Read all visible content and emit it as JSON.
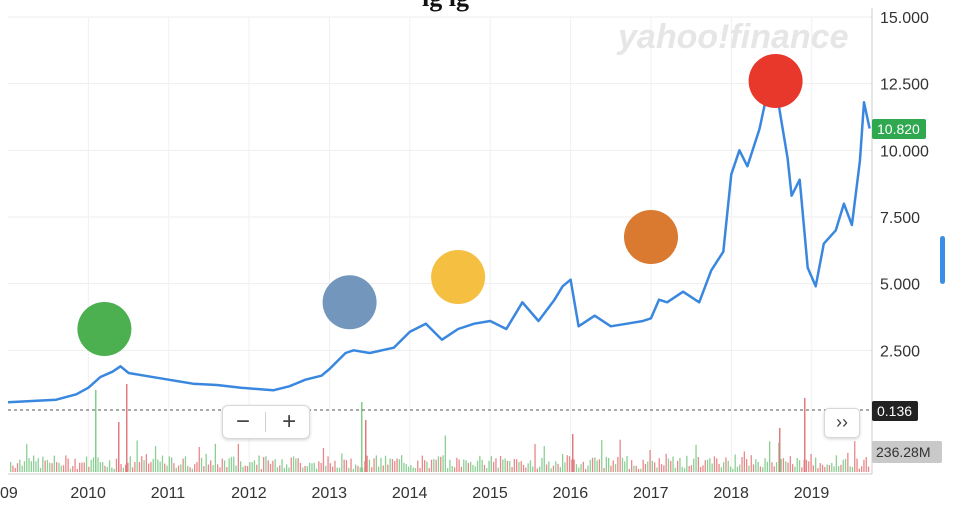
{
  "chart_data": {
    "type": "line",
    "title": "",
    "watermark": "yahoo!finance",
    "xlabel": "",
    "ylabel": "",
    "x_tick_labels": [
      "09",
      "2010",
      "2011",
      "2012",
      "2013",
      "2014",
      "2015",
      "2016",
      "2017",
      "2018",
      "2019"
    ],
    "x_range": [
      2009.0,
      2019.75
    ],
    "y_tick_labels": [
      "15.000",
      "12.500",
      "10.000",
      "7.500",
      "5.000",
      "2.500"
    ],
    "ylim": [
      0,
      15.0
    ],
    "grid": true,
    "series": [
      {
        "name": "",
        "color": "#3a87e0",
        "x": [
          2009.0,
          2009.3,
          2009.6,
          2009.85,
          2010.0,
          2010.15,
          2010.3,
          2010.4,
          2010.5,
          2010.7,
          2011.0,
          2011.3,
          2011.6,
          2011.9,
          2012.1,
          2012.3,
          2012.5,
          2012.7,
          2012.9,
          2013.0,
          2013.1,
          2013.2,
          2013.3,
          2013.5,
          2013.8,
          2014.0,
          2014.2,
          2014.4,
          2014.6,
          2014.8,
          2015.0,
          2015.2,
          2015.4,
          2015.6,
          2015.8,
          2015.9,
          2016.0,
          2016.1,
          2016.3,
          2016.5,
          2016.7,
          2016.9,
          2017.0,
          2017.1,
          2017.2,
          2017.4,
          2017.6,
          2017.75,
          2017.9,
          2018.0,
          2018.1,
          2018.2,
          2018.35,
          2018.45,
          2018.55,
          2018.6,
          2018.7,
          2018.75,
          2018.85,
          2018.95,
          2019.05,
          2019.15,
          2019.3,
          2019.4,
          2019.5,
          2019.6,
          2019.65,
          2019.72
        ],
        "values": [
          0.55,
          0.6,
          0.65,
          0.85,
          1.1,
          1.5,
          1.7,
          1.9,
          1.65,
          1.55,
          1.4,
          1.25,
          1.2,
          1.1,
          1.05,
          1.0,
          1.15,
          1.4,
          1.55,
          1.8,
          2.1,
          2.4,
          2.5,
          2.4,
          2.6,
          3.2,
          3.5,
          2.9,
          3.3,
          3.5,
          3.6,
          3.3,
          4.3,
          3.6,
          4.4,
          4.9,
          5.15,
          3.4,
          3.8,
          3.4,
          3.5,
          3.6,
          3.7,
          4.4,
          4.3,
          4.7,
          4.3,
          5.5,
          6.2,
          9.1,
          10.0,
          9.4,
          10.8,
          12.2,
          12.6,
          11.5,
          9.7,
          8.3,
          8.9,
          5.6,
          4.9,
          6.5,
          7.0,
          8.0,
          7.2,
          9.6,
          11.8,
          10.82
        ]
      }
    ],
    "annotations": {
      "price_tag": "10.820",
      "price_tag_value": 10.82,
      "baseline_tag": "0.136",
      "volume_tag": "236.28M",
      "circles": [
        {
          "x": 2010.2,
          "y": 3.3,
          "color": "#4caf50"
        },
        {
          "x": 2013.25,
          "y": 4.3,
          "color": "#7396bc"
        },
        {
          "x": 2014.6,
          "y": 5.25,
          "color": "#f5bf42"
        },
        {
          "x": 2017.0,
          "y": 6.75,
          "color": "#d97a30"
        },
        {
          "x": 2018.55,
          "y": 12.6,
          "color": "#e8372b"
        }
      ]
    }
  },
  "controls": {
    "zoom_out": "−",
    "zoom_in": "+",
    "expand": "›› "
  }
}
